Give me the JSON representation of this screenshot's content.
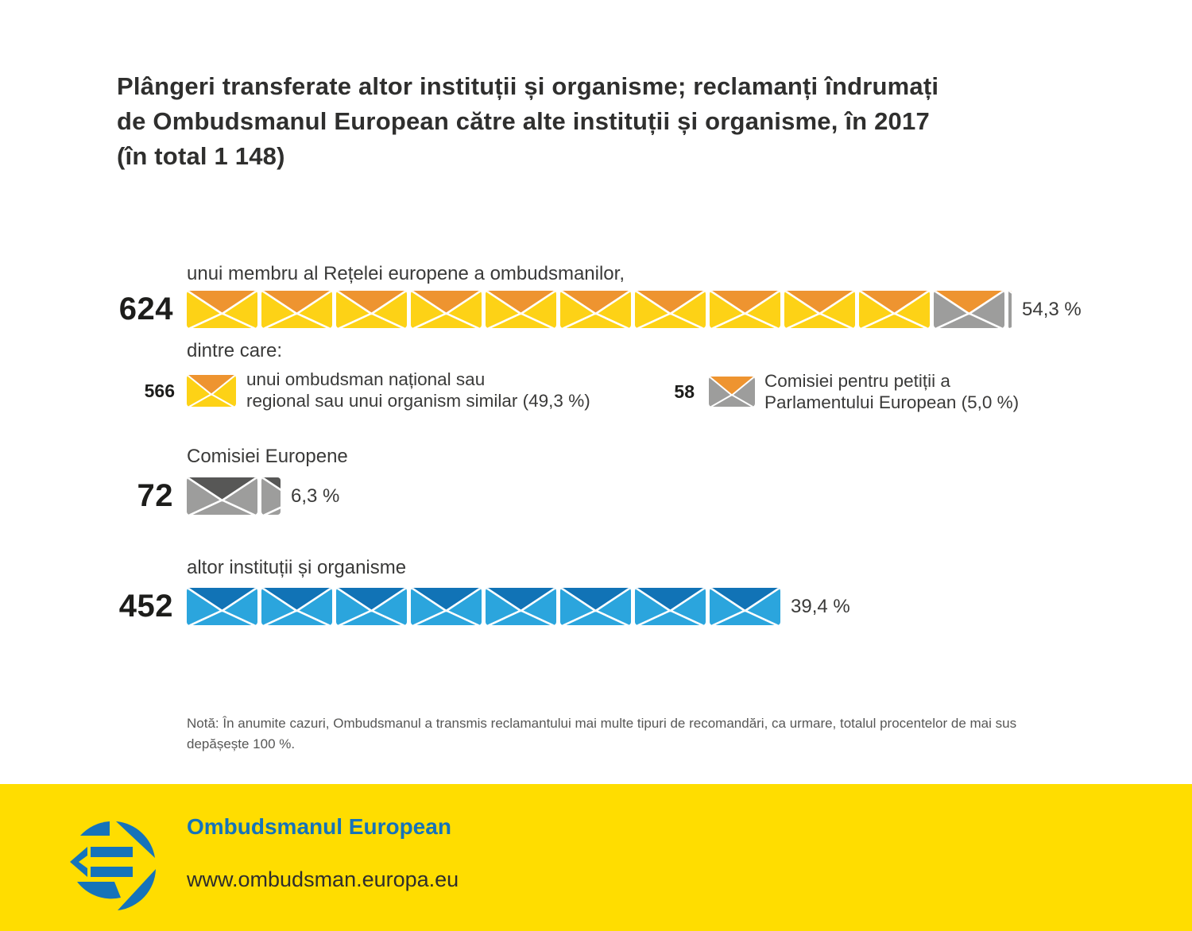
{
  "title_lines": [
    "Plângeri transferate altor instituții și organisme; reclamanți îndrumați",
    "de Ombudsmanul European către alte instituții și organisme, în 2017",
    "(în total 1 148)"
  ],
  "chart_data": {
    "type": "pictograph",
    "title": "Plângeri transferate altor instituții și organisme; reclamanți îndrumați de Ombudsmanul European către alte instituții și organisme, în 2017 (în total 1 148)",
    "total_label": "în total 1 148",
    "total": 1148,
    "rows": [
      {
        "label": "unui membru al Rețelei europene a ombudsmanilor,",
        "value": 624,
        "percent": "54,3 %",
        "icons": [
          {
            "body": "#FDD216",
            "flap": "#EE9430",
            "count": 10
          },
          {
            "body": "#9D9D9C",
            "flap": "#EE9430",
            "count": 1
          }
        ],
        "sliver": {
          "width": 4,
          "body": "#9D9D9C",
          "flap": "#EE9430"
        }
      },
      {
        "label": "Comisiei Europene",
        "value": 72,
        "percent": "6,3 %",
        "icons": [
          {
            "body": "#9D9D9C",
            "flap": "#575756",
            "count": 1
          }
        ],
        "sliver": {
          "width": 24,
          "body": "#9D9D9C",
          "flap": "#575756"
        }
      },
      {
        "label": "altor instituții și organisme",
        "value": 452,
        "percent": "39,4 %",
        "icons": [
          {
            "body": "#2BA5DD",
            "flap": "#1173B6",
            "count": 8
          }
        ],
        "sliver": null
      }
    ],
    "breakdown": {
      "intro": "dintre care:",
      "items": [
        {
          "value": 566,
          "label_lines": [
            "unui ombudsman național sau",
            "regional sau unui organism similar (49,3 %)"
          ],
          "body": "#FDD216",
          "flap": "#EE9430"
        },
        {
          "value": 58,
          "label_lines": [
            "Comisiei pentru petiții a",
            "Parlamentului European (5,0 %)"
          ],
          "body": "#9D9D9C",
          "flap": "#EE9430"
        }
      ]
    },
    "colors": {
      "yellow_body": "#FDD216",
      "orange_flap": "#EE9430",
      "gray_body": "#9D9D9C",
      "dark_gray_flap": "#575756",
      "blue_body": "#2BA5DD",
      "dark_blue_flap": "#1173B6"
    }
  },
  "note_lines": [
    "Notă: În anumite cazuri, Ombudsmanul a transmis reclamantului mai multe tipuri de recomandări, ca urmare, totalul procentelor de mai sus",
    "depășește 100 %."
  ],
  "footer": {
    "org": "Ombudsmanul European",
    "url": "www.ombudsman.europa.eu",
    "band_color": "#FFDD00",
    "accent_blue": "#1573BA"
  }
}
